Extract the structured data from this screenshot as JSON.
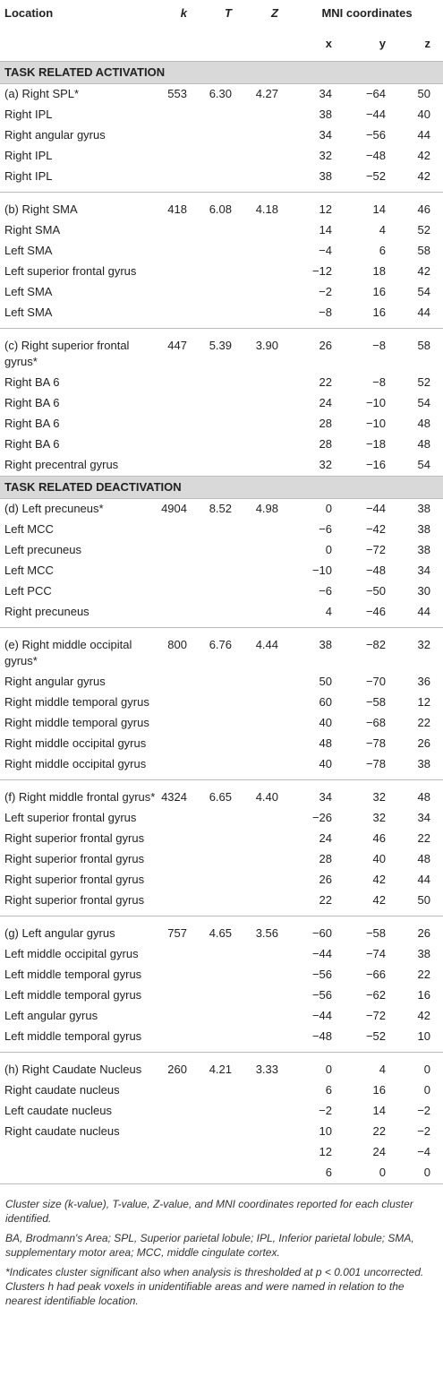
{
  "headers": {
    "location": "Location",
    "k": "k",
    "t": "T",
    "z": "Z",
    "mni": "MNI coordinates",
    "x": "x",
    "y": "y",
    "zc": "z"
  },
  "sections": [
    {
      "title": "TASK RELATED ACTIVATION",
      "groups": [
        {
          "rows": [
            [
              "(a) Right SPL*",
              "553",
              "6.30",
              "4.27",
              "34",
              "−64",
              "50"
            ],
            [
              "Right IPL",
              "",
              "",
              "",
              "38",
              "−44",
              "40"
            ],
            [
              "Right angular gyrus",
              "",
              "",
              "",
              "34",
              "−56",
              "44"
            ],
            [
              "Right IPL",
              "",
              "",
              "",
              "32",
              "−48",
              "42"
            ],
            [
              "Right IPL",
              "",
              "",
              "",
              "38",
              "−52",
              "42"
            ]
          ]
        },
        {
          "rows": [
            [
              "(b) Right SMA",
              "418",
              "6.08",
              "4.18",
              "12",
              "14",
              "46"
            ],
            [
              "Right SMA",
              "",
              "",
              "",
              "14",
              "4",
              "52"
            ],
            [
              "Left SMA",
              "",
              "",
              "",
              "−4",
              "6",
              "58"
            ],
            [
              "Left superior frontal gyrus",
              "",
              "",
              "",
              "−12",
              "18",
              "42"
            ],
            [
              "Left SMA",
              "",
              "",
              "",
              "−2",
              "16",
              "54"
            ],
            [
              "Left SMA",
              "",
              "",
              "",
              "−8",
              "16",
              "44"
            ]
          ]
        },
        {
          "rows": [
            [
              "(c) Right superior frontal gyrus*",
              "447",
              "5.39",
              "3.90",
              "26",
              "−8",
              "58"
            ],
            [
              "Right BA 6",
              "",
              "",
              "",
              "22",
              "−8",
              "52"
            ],
            [
              "Right BA 6",
              "",
              "",
              "",
              "24",
              "−10",
              "54"
            ],
            [
              "Right BA 6",
              "",
              "",
              "",
              "28",
              "−10",
              "48"
            ],
            [
              "Right BA 6",
              "",
              "",
              "",
              "28",
              "−18",
              "48"
            ],
            [
              "Right precentral gyrus",
              "",
              "",
              "",
              "32",
              "−16",
              "54"
            ]
          ]
        }
      ]
    },
    {
      "title": "TASK RELATED DEACTIVATION",
      "groups": [
        {
          "rows": [
            [
              "(d) Left precuneus*",
              "4904",
              "8.52",
              "4.98",
              "0",
              "−44",
              "38"
            ],
            [
              "Left MCC",
              "",
              "",
              "",
              "−6",
              "−42",
              "38"
            ],
            [
              "Left precuneus",
              "",
              "",
              "",
              "0",
              "−72",
              "38"
            ],
            [
              "Left MCC",
              "",
              "",
              "",
              "−10",
              "−48",
              "34"
            ],
            [
              "Left PCC",
              "",
              "",
              "",
              "−6",
              "−50",
              "30"
            ],
            [
              "Right precuneus",
              "",
              "",
              "",
              "4",
              "−46",
              "44"
            ]
          ]
        },
        {
          "rows": [
            [
              "(e) Right middle occipital gyrus*",
              "800",
              "6.76",
              "4.44",
              "38",
              "−82",
              "32"
            ],
            [
              "Right angular gyrus",
              "",
              "",
              "",
              "50",
              "−70",
              "36"
            ],
            [
              "Right middle temporal gyrus",
              "",
              "",
              "",
              "60",
              "−58",
              "12"
            ],
            [
              "Right middle temporal gyrus",
              "",
              "",
              "",
              "40",
              "−68",
              "22"
            ],
            [
              "Right middle occipital gyrus",
              "",
              "",
              "",
              "48",
              "−78",
              "26"
            ],
            [
              "Right middle occipital gyrus",
              "",
              "",
              "",
              "40",
              "−78",
              "38"
            ]
          ]
        },
        {
          "rows": [
            [
              "(f) Right middle frontal gyrus*",
              "4324",
              "6.65",
              "4.40",
              "34",
              "32",
              "48"
            ],
            [
              "Left superior frontal gyrus",
              "",
              "",
              "",
              "−26",
              "32",
              "34"
            ],
            [
              "Right superior frontal gyrus",
              "",
              "",
              "",
              "24",
              "46",
              "22"
            ],
            [
              "Right superior frontal gyrus",
              "",
              "",
              "",
              "28",
              "40",
              "48"
            ],
            [
              "Right superior frontal gyrus",
              "",
              "",
              "",
              "26",
              "42",
              "44"
            ],
            [
              "Right superior frontal gyrus",
              "",
              "",
              "",
              "22",
              "42",
              "50"
            ]
          ]
        },
        {
          "rows": [
            [
              "(g) Left angular gyrus",
              "757",
              "4.65",
              "3.56",
              "−60",
              "−58",
              "26"
            ],
            [
              "Left middle occipital gyrus",
              "",
              "",
              "",
              "−44",
              "−74",
              "38"
            ],
            [
              "Left middle temporal gyrus",
              "",
              "",
              "",
              "−56",
              "−66",
              "22"
            ],
            [
              "Left middle temporal gyrus",
              "",
              "",
              "",
              "−56",
              "−62",
              "16"
            ],
            [
              "Left angular gyrus",
              "",
              "",
              "",
              "−44",
              "−72",
              "42"
            ],
            [
              "Left middle temporal gyrus",
              "",
              "",
              "",
              "−48",
              "−52",
              "10"
            ]
          ]
        },
        {
          "rows": [
            [
              "(h) Right Caudate Nucleus",
              "260",
              "4.21",
              "3.33",
              "0",
              "4",
              "0"
            ],
            [
              "Right caudate nucleus",
              "",
              "",
              "",
              "6",
              "16",
              "0"
            ],
            [
              "Left caudate nucleus",
              "",
              "",
              "",
              "−2",
              "14",
              "−2"
            ],
            [
              "Right caudate nucleus",
              "",
              "",
              "",
              "10",
              "22",
              "−2"
            ],
            [
              "",
              "",
              "",
              "",
              "12",
              "24",
              "−4"
            ],
            [
              "",
              "",
              "",
              "",
              "6",
              "0",
              "0"
            ]
          ]
        }
      ]
    }
  ],
  "footnotes": [
    "Cluster size (k-value), T-value, Z-value, and MNI coordinates reported for each cluster identified.",
    "BA, Brodmann's Area; SPL, Superior parietal lobule; IPL, Inferior parietal lobule; SMA, supplementary motor area; MCC, middle cingulate cortex.",
    "*Indicates cluster significant also when analysis is thresholded at p < 0.001 uncorrected. Clusters h had peak voxels in unidentifiable areas and were named in relation to the nearest identifiable location."
  ]
}
